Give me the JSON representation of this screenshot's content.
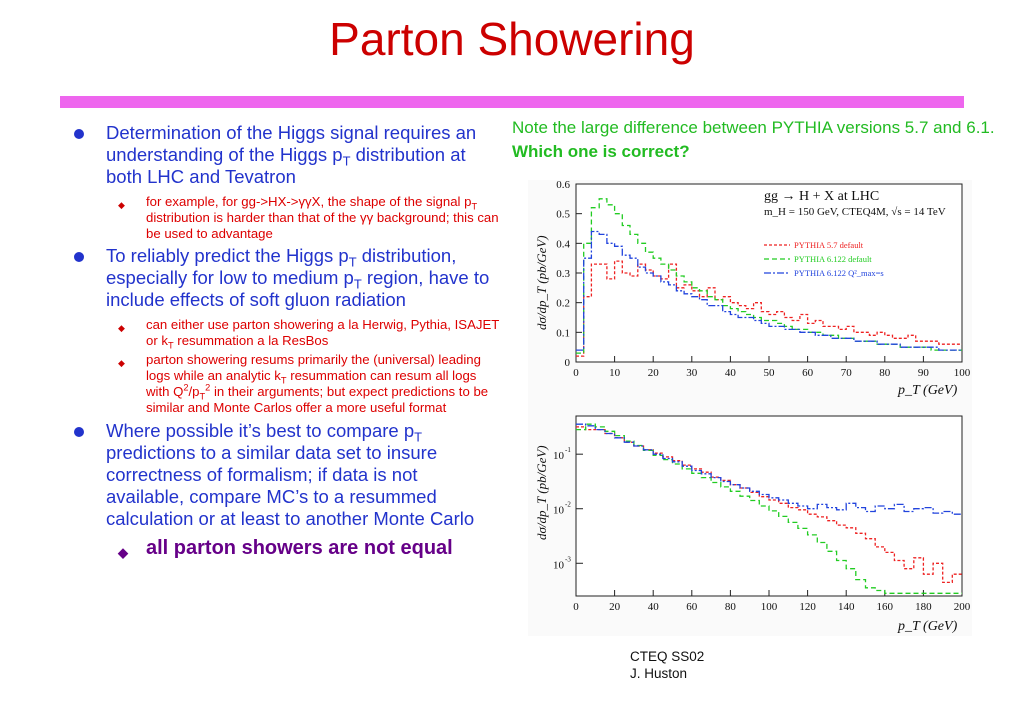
{
  "slide": {
    "title": "Parton Showering",
    "accent_color": "#ee66ee",
    "title_color": "#cc0000"
  },
  "left": {
    "b1": {
      "pre": "Determination of the Higgs signal requires an understanding of the Higgs p",
      "sub": "T",
      "post": " distribution at both LHC and Tevatron"
    },
    "b1a": {
      "a": "for example, for gg->HX->γγX, the shape of the signal p",
      "sub": "T",
      "b": " distribution is harder than that of the γγ background; this can be used to advantage"
    },
    "b2": {
      "a": "To reliably predict the Higgs p",
      "sub1": "T",
      "b": " distribution, especially for low to medium p",
      "sub2": "T",
      "c": " region, have to include effects of soft gluon radiation"
    },
    "b2a": {
      "a": "can either use parton showering a la Herwig, Pythia, ISAJET or k",
      "sub": "T",
      "b": " resummation a la ResBos"
    },
    "b2b": {
      "a": "parton showering resums primarily the (universal) leading logs while an analytic k",
      "sub1": "T",
      "b": " resummation can resum all logs with Q",
      "sup1": "2",
      "c": "/p",
      "sub2": "T",
      "sup2": "2",
      "d": " in their arguments; but expect predictions to be similar and Monte Carlos offer a more useful format"
    },
    "b3": {
      "a": "Where possible it’s best to compare p",
      "sub": "T",
      "b": " predictions to a similar data set to insure correctness of formalism; if data is not available, compare MC’s to a resummed calculation or at least to another Monte Carlo"
    },
    "b3a": "all parton showers are not equal"
  },
  "note": {
    "normal": "Note the large difference between PYTHIA versions 5.7 and 6.1. ",
    "bold": "Which one is correct?"
  },
  "footer": {
    "line1": "CTEQ SS02",
    "line2": "J. Huston"
  },
  "chart_data": [
    {
      "type": "line",
      "title": "gg → H + X at LHC",
      "subtitle": "m_H = 150 GeV, CTEQ4M, √s = 14 TeV",
      "xlabel": "p_T (GeV)",
      "ylabel": "dσ/dp_T (pb/GeV)",
      "xlim": [
        0,
        100
      ],
      "ylim": [
        0,
        0.6
      ],
      "xticks": [
        "0",
        "10",
        "20",
        "30",
        "40",
        "50",
        "60",
        "70",
        "80",
        "90",
        "100"
      ],
      "yticks": [
        "0",
        "0.1",
        "0.2",
        "0.3",
        "0.4",
        "0.5",
        "0.6"
      ],
      "legend_position": "top-right",
      "legend": [
        "PYTHIA 5.7 default",
        "PYTHIA 6.122 default",
        "PYTHIA 6.122 Q²_max=s"
      ],
      "x": [
        0,
        2,
        4,
        6,
        8,
        10,
        12,
        14,
        16,
        18,
        20,
        22,
        24,
        26,
        28,
        30,
        32,
        34,
        36,
        38,
        40,
        42,
        44,
        46,
        48,
        50,
        52,
        54,
        56,
        58,
        60,
        62,
        64,
        66,
        68,
        70,
        72,
        74,
        76,
        78,
        80,
        82,
        84,
        86,
        88,
        90,
        92,
        94,
        96,
        98,
        100
      ],
      "series": [
        {
          "name": "PYTHIA 5.7 default",
          "color": "#ee2222",
          "values": [
            0.02,
            0.22,
            0.33,
            0.33,
            0.28,
            0.34,
            0.3,
            0.29,
            0.33,
            0.31,
            0.29,
            0.28,
            0.33,
            0.25,
            0.26,
            0.24,
            0.22,
            0.25,
            0.21,
            0.22,
            0.2,
            0.19,
            0.18,
            0.2,
            0.17,
            0.16,
            0.17,
            0.15,
            0.14,
            0.16,
            0.13,
            0.14,
            0.12,
            0.12,
            0.11,
            0.12,
            0.1,
            0.1,
            0.09,
            0.1,
            0.09,
            0.08,
            0.08,
            0.09,
            0.07,
            0.07,
            0.07,
            0.06,
            0.06,
            0.06,
            0.05
          ]
        },
        {
          "name": "PYTHIA 6.122 default",
          "color": "#22cc22",
          "values": [
            0.03,
            0.4,
            0.52,
            0.55,
            0.53,
            0.5,
            0.46,
            0.43,
            0.4,
            0.37,
            0.35,
            0.33,
            0.31,
            0.29,
            0.27,
            0.25,
            0.24,
            0.22,
            0.21,
            0.19,
            0.18,
            0.17,
            0.16,
            0.15,
            0.14,
            0.14,
            0.13,
            0.12,
            0.11,
            0.11,
            0.1,
            0.1,
            0.09,
            0.09,
            0.08,
            0.08,
            0.07,
            0.07,
            0.07,
            0.06,
            0.06,
            0.06,
            0.05,
            0.05,
            0.05,
            0.05,
            0.04,
            0.04,
            0.04,
            0.04,
            0.04
          ]
        },
        {
          "name": "PYTHIA 6.122 Q²_max=s",
          "color": "#2244dd",
          "values": [
            0.04,
            0.35,
            0.44,
            0.43,
            0.4,
            0.39,
            0.36,
            0.35,
            0.32,
            0.3,
            0.29,
            0.27,
            0.26,
            0.24,
            0.23,
            0.22,
            0.21,
            0.19,
            0.19,
            0.17,
            0.16,
            0.15,
            0.15,
            0.14,
            0.13,
            0.12,
            0.12,
            0.11,
            0.11,
            0.1,
            0.1,
            0.09,
            0.09,
            0.08,
            0.08,
            0.08,
            0.07,
            0.07,
            0.07,
            0.06,
            0.06,
            0.06,
            0.05,
            0.05,
            0.05,
            0.05,
            0.05,
            0.04,
            0.04,
            0.04,
            0.04
          ]
        }
      ]
    },
    {
      "type": "line",
      "xlabel": "p_T (GeV)",
      "ylabel": "dσ/dp_T (pb/GeV)",
      "xlim": [
        0,
        200
      ],
      "ylog": true,
      "ylim_exp": [
        -3.6,
        -0.3
      ],
      "xticks": [
        "0",
        "20",
        "40",
        "60",
        "80",
        "100",
        "120",
        "140",
        "160",
        "180",
        "200"
      ],
      "ytick_exps": [
        -1,
        -2,
        -3
      ],
      "ytick_base": "10",
      "x": [
        0,
        5,
        10,
        15,
        20,
        25,
        30,
        35,
        40,
        45,
        50,
        55,
        60,
        65,
        70,
        75,
        80,
        85,
        90,
        95,
        100,
        105,
        110,
        115,
        120,
        125,
        130,
        135,
        140,
        145,
        150,
        155,
        160,
        165,
        170,
        175,
        180,
        185,
        190,
        195,
        200
      ],
      "series": [
        {
          "name": "PYTHIA 5.7 default",
          "color": "#ee2222",
          "log10_values": [
            -0.5,
            -0.55,
            -0.55,
            -0.62,
            -0.7,
            -0.78,
            -0.85,
            -0.92,
            -0.98,
            -1.05,
            -1.12,
            -1.2,
            -1.27,
            -1.33,
            -1.42,
            -1.48,
            -1.56,
            -1.62,
            -1.7,
            -1.78,
            -1.84,
            -1.9,
            -1.98,
            -2.02,
            -2.1,
            -2.15,
            -2.22,
            -2.3,
            -2.35,
            -2.45,
            -2.55,
            -2.7,
            -2.8,
            -2.95,
            -3.1,
            -2.9,
            -3.2,
            -3.0,
            -3.35,
            -3.2,
            -3.45
          ]
        },
        {
          "name": "PYTHIA 6.122 default",
          "color": "#22cc22",
          "log10_values": [
            -0.55,
            -0.45,
            -0.5,
            -0.58,
            -0.66,
            -0.76,
            -0.84,
            -0.93,
            -1.02,
            -1.1,
            -1.18,
            -1.27,
            -1.35,
            -1.43,
            -1.52,
            -1.6,
            -1.68,
            -1.77,
            -1.85,
            -1.95,
            -2.04,
            -2.14,
            -2.25,
            -2.36,
            -2.48,
            -2.62,
            -2.78,
            -2.95,
            -3.1,
            -3.3,
            -3.45,
            -3.5,
            -3.55,
            -3.55,
            -3.55,
            -3.55,
            -3.55,
            -3.55,
            -3.55,
            -3.55,
            -3.55
          ]
        },
        {
          "name": "PYTHIA 6.122 Q²_max=s",
          "color": "#2244dd",
          "log10_values": [
            -0.45,
            -0.48,
            -0.55,
            -0.62,
            -0.7,
            -0.78,
            -0.85,
            -0.92,
            -1.0,
            -1.08,
            -1.14,
            -1.22,
            -1.3,
            -1.36,
            -1.43,
            -1.5,
            -1.56,
            -1.62,
            -1.68,
            -1.74,
            -1.8,
            -1.84,
            -1.9,
            -1.95,
            -2.0,
            -1.92,
            -1.98,
            -2.02,
            -1.9,
            -1.98,
            -2.05,
            -1.95,
            -2.0,
            -1.92,
            -2.05,
            -2.0,
            -1.98,
            -2.08,
            -2.05,
            -2.1,
            -2.05
          ]
        }
      ]
    }
  ]
}
